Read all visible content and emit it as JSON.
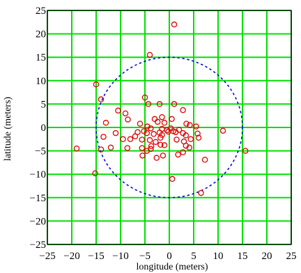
{
  "chart_data": {
    "type": "scatter",
    "title": "",
    "xlabel": "longitude (meters)",
    "ylabel": "latitude (meters)",
    "xlim": [
      -25,
      25
    ],
    "ylim": [
      -25,
      25
    ],
    "xticks": [
      -25,
      -20,
      -15,
      -10,
      -5,
      0,
      5,
      10,
      15,
      20,
      25
    ],
    "yticks": [
      -25,
      -20,
      -15,
      -10,
      -5,
      0,
      5,
      10,
      15,
      20,
      25
    ],
    "xtick_labels": [
      "−25",
      "−20",
      "−15",
      "−10",
      "−5",
      "0",
      "5",
      "10",
      "15",
      "20",
      "25"
    ],
    "ytick_labels": [
      "−25",
      "−20",
      "−15",
      "−10",
      "−5",
      "0",
      "5",
      "10",
      "15",
      "20",
      "25"
    ],
    "grid": true,
    "legend": false,
    "colors": {
      "grid": "#00e000",
      "points": "#e00000",
      "circle": "#0000e0",
      "frame": "#000000"
    },
    "series": [
      {
        "marker": "open-circle",
        "points": [
          [
            1,
            22
          ],
          [
            -4,
            15.5
          ],
          [
            -15,
            9.2
          ],
          [
            -14,
            6
          ],
          [
            -5,
            6.4
          ],
          [
            -4.3,
            5
          ],
          [
            -2,
            5
          ],
          [
            1,
            5
          ],
          [
            -10.5,
            3.6
          ],
          [
            -9,
            3
          ],
          [
            -1.5,
            2.2
          ],
          [
            -3,
            1.8
          ],
          [
            -2.4,
            1.2
          ],
          [
            0.5,
            1.8
          ],
          [
            2.8,
            3.7
          ],
          [
            -8.5,
            1.7
          ],
          [
            -1,
            1
          ],
          [
            -13,
            1
          ],
          [
            -6,
            0.8
          ],
          [
            -4.5,
            0.2
          ],
          [
            3.5,
            0.8
          ],
          [
            4.2,
            0.5
          ],
          [
            5.5,
            0.2
          ],
          [
            -3.8,
            -0.2
          ],
          [
            -1.5,
            -0.3
          ],
          [
            0.3,
            -0.2
          ],
          [
            2,
            -0.5
          ],
          [
            -0.5,
            -0.6
          ],
          [
            0.8,
            -0.8
          ],
          [
            -6.5,
            -1
          ],
          [
            -5.2,
            -0.8
          ],
          [
            -4.6,
            -1.2
          ],
          [
            -3.2,
            -1.4
          ],
          [
            -2,
            -1.1
          ],
          [
            -1.5,
            -1.6
          ],
          [
            -0.2,
            -0.9
          ],
          [
            1.3,
            -1
          ],
          [
            2.8,
            -1.2
          ],
          [
            3.4,
            -1.7
          ],
          [
            5.8,
            -1.3
          ],
          [
            11,
            -0.7
          ],
          [
            -11,
            -1.2
          ],
          [
            -13.5,
            -2
          ],
          [
            -12,
            -4.3
          ],
          [
            -9.5,
            -2.5
          ],
          [
            -8,
            -2.5
          ],
          [
            -7,
            -1.9
          ],
          [
            -5.6,
            -2.6
          ],
          [
            -4,
            -2.7
          ],
          [
            -2.8,
            -3.1
          ],
          [
            -1.8,
            -2.2
          ],
          [
            1.5,
            -2.6
          ],
          [
            3,
            -3
          ],
          [
            4.4,
            -2.5
          ],
          [
            6,
            -2.2
          ],
          [
            -19,
            -4.5
          ],
          [
            -14,
            -4.7
          ],
          [
            -8.6,
            -4.4
          ],
          [
            -5.6,
            -4.4
          ],
          [
            -3.7,
            -4
          ],
          [
            -1.8,
            -3.7
          ],
          [
            -1,
            -3.8
          ],
          [
            3.4,
            -3.9
          ],
          [
            4.1,
            -4.3
          ],
          [
            -4.6,
            -5
          ],
          [
            -3.8,
            -4.6
          ],
          [
            2.8,
            -5.3
          ],
          [
            15.6,
            -5
          ],
          [
            -5.5,
            -6
          ],
          [
            -2.6,
            -6.5
          ],
          [
            -1.3,
            -6
          ],
          [
            1.8,
            -5.8
          ],
          [
            7.3,
            -6.9
          ],
          [
            -15.2,
            -9.8
          ],
          [
            0.6,
            -11
          ],
          [
            6.5,
            -14
          ]
        ]
      }
    ],
    "circle": {
      "center": [
        0,
        0
      ],
      "radius": 15,
      "style": "dotted"
    }
  }
}
